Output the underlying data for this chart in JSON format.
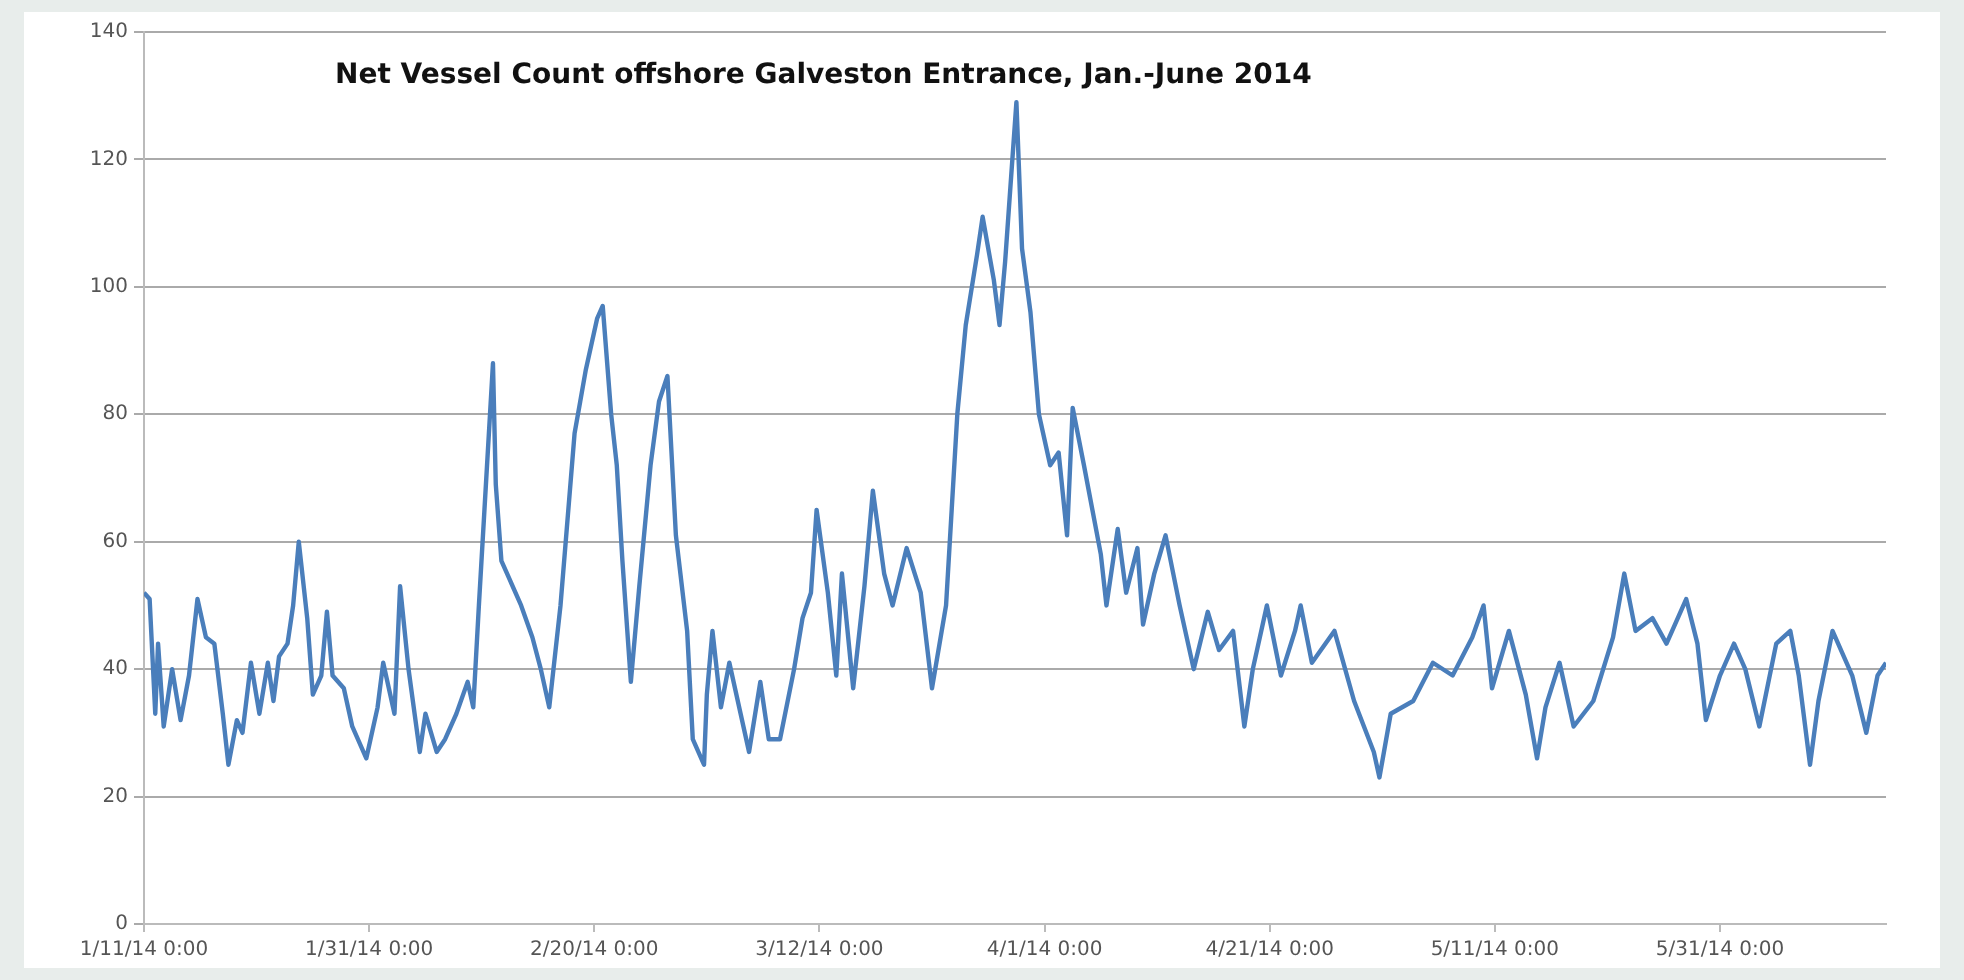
{
  "chart_data": {
    "type": "line",
    "title": "Net Vessel Count offshore Galveston Entrance, Jan.-June 2014",
    "xlim": [
      "2014-01-11T00:00",
      "2014-06-14T18:00"
    ],
    "xticks": [
      {
        "value": "2014-01-11T00:00",
        "label": "1/11/14 0:00"
      },
      {
        "value": "2014-01-31T00:00",
        "label": "1/31/14 0:00"
      },
      {
        "value": "2014-02-20T00:00",
        "label": "2/20/14 0:00"
      },
      {
        "value": "2014-03-12T00:00",
        "label": "3/12/14 0:00"
      },
      {
        "value": "2014-04-01T00:00",
        "label": "4/1/14 0:00"
      },
      {
        "value": "2014-04-21T00:00",
        "label": "4/21/14 0:00"
      },
      {
        "value": "2014-05-11T00:00",
        "label": "5/11/14 0:00"
      },
      {
        "value": "2014-05-31T00:00",
        "label": "5/31/14 0:00"
      }
    ],
    "ylim": [
      0,
      140
    ],
    "yticks": [
      0,
      20,
      40,
      60,
      80,
      100,
      120,
      140
    ],
    "grid": "y",
    "legend": false,
    "marker": "none",
    "line_style": "solid",
    "series": [
      {
        "color": "#4a7ebb",
        "x": [
          "2014-01-11T00:00",
          "2014-01-11T12:00",
          "2014-01-12T00:00",
          "2014-01-12T06:00",
          "2014-01-12T18:00",
          "2014-01-13T12:00",
          "2014-01-14T06:00",
          "2014-01-15T00:00",
          "2014-01-15T18:00",
          "2014-01-16T12:00",
          "2014-01-17T06:00",
          "2014-01-18T00:00",
          "2014-01-18T12:00",
          "2014-01-19T06:00",
          "2014-01-19T18:00",
          "2014-01-20T12:00",
          "2014-01-21T06:00",
          "2014-01-22T00:00",
          "2014-01-22T12:00",
          "2014-01-23T00:00",
          "2014-01-23T18:00",
          "2014-01-24T06:00",
          "2014-01-24T18:00",
          "2014-01-25T12:00",
          "2014-01-26T00:00",
          "2014-01-26T18:00",
          "2014-01-27T06:00",
          "2014-01-27T18:00",
          "2014-01-28T18:00",
          "2014-01-29T12:00",
          "2014-01-30T18:00",
          "2014-01-31T18:00",
          "2014-02-01T06:00",
          "2014-02-02T06:00",
          "2014-02-02T18:00",
          "2014-02-03T12:00",
          "2014-02-04T12:00",
          "2014-02-05T00:00",
          "2014-02-06T00:00",
          "2014-02-06T18:00",
          "2014-02-07T18:00",
          "2014-02-08T18:00",
          "2014-02-09T06:00",
          "2014-02-09T18:00",
          "2014-02-11T00:00",
          "2014-02-11T06:00",
          "2014-02-11T18:00",
          "2014-02-12T12:00",
          "2014-02-13T12:00",
          "2014-02-14T12:00",
          "2014-02-15T06:00",
          "2014-02-16T00:00",
          "2014-02-17T00:00",
          "2014-02-18T06:00",
          "2014-02-18T18:00",
          "2014-02-19T06:00",
          "2014-02-20T06:00",
          "2014-02-20T18:00",
          "2014-02-21T12:00",
          "2014-02-22T00:00",
          "2014-02-22T12:00",
          "2014-02-23T06:00",
          "2014-02-24T00:00",
          "2014-02-25T00:00",
          "2014-02-25T18:00",
          "2014-02-26T12:00",
          "2014-02-27T06:00",
          "2014-02-28T06:00",
          "2014-02-28T18:00",
          "2014-03-01T18:00",
          "2014-03-02T00:00",
          "2014-03-02T12:00",
          "2014-03-03T06:00",
          "2014-03-04T00:00",
          "2014-03-05T00:00",
          "2014-03-05T18:00",
          "2014-03-06T18:00",
          "2014-03-07T12:00",
          "2014-03-08T12:00",
          "2014-03-09T18:00",
          "2014-03-10T12:00",
          "2014-03-11T06:00",
          "2014-03-11T18:00",
          "2014-03-12T18:00",
          "2014-03-13T12:00",
          "2014-03-14T00:00",
          "2014-03-15T00:00",
          "2014-03-16T00:00",
          "2014-03-16T18:00",
          "2014-03-17T18:00",
          "2014-03-18T12:00",
          "2014-03-19T18:00",
          "2014-03-21T00:00",
          "2014-03-22T00:00",
          "2014-03-23T06:00",
          "2014-03-24T06:00",
          "2014-03-25T00:00",
          "2014-03-26T00:00",
          "2014-03-26T12:00",
          "2014-03-27T12:00",
          "2014-03-28T00:00",
          "2014-03-28T12:00",
          "2014-03-29T12:00",
          "2014-03-30T00:00",
          "2014-03-30T18:00",
          "2014-03-31T12:00",
          "2014-04-01T12:00",
          "2014-04-02T06:00",
          "2014-04-03T00:00",
          "2014-04-03T12:00",
          "2014-04-04T12:00",
          "2014-04-06T00:00",
          "2014-04-06T12:00",
          "2014-04-07T12:00",
          "2014-04-08T06:00",
          "2014-04-09T06:00",
          "2014-04-09T18:00",
          "2014-04-10T18:00",
          "2014-04-11T18:00",
          "2014-04-13T00:00",
          "2014-04-14T06:00",
          "2014-04-15T12:00",
          "2014-04-16T12:00",
          "2014-04-17T18:00",
          "2014-04-18T18:00",
          "2014-04-19T12:00",
          "2014-04-20T18:00",
          "2014-04-22T00:00",
          "2014-04-23T06:00",
          "2014-04-23T18:00",
          "2014-04-24T18:00",
          "2014-04-26T18:00",
          "2014-04-28T12:00",
          "2014-04-30T06:00",
          "2014-04-30T18:00",
          "2014-05-01T18:00",
          "2014-05-03T18:00",
          "2014-05-05T12:00",
          "2014-05-07T06:00",
          "2014-05-09T00:00",
          "2014-05-10T00:00",
          "2014-05-10T18:00",
          "2014-05-12T06:00",
          "2014-05-13T18:00",
          "2014-05-14T18:00",
          "2014-05-15T12:00",
          "2014-05-16T18:00",
          "2014-05-18T00:00",
          "2014-05-19T18:00",
          "2014-05-21T12:00",
          "2014-05-22T12:00",
          "2014-05-23T12:00",
          "2014-05-25T00:00",
          "2014-05-26T06:00",
          "2014-05-28T00:00",
          "2014-05-29T00:00",
          "2014-05-29T18:00",
          "2014-05-31T00:00",
          "2014-06-01T06:00",
          "2014-06-02T06:00",
          "2014-06-03T12:00",
          "2014-06-05T00:00",
          "2014-06-06T06:00",
          "2014-06-07T00:00",
          "2014-06-08T00:00",
          "2014-06-08T18:00",
          "2014-06-10T00:00",
          "2014-06-11T18:00",
          "2014-06-13T00:00",
          "2014-06-14T00:00",
          "2014-06-14T18:00"
        ],
        "values": [
          52,
          51,
          33,
          44,
          31,
          40,
          32,
          39,
          51,
          45,
          44,
          33,
          25,
          32,
          30,
          41,
          33,
          41,
          35,
          42,
          44,
          50,
          60,
          48,
          36,
          39,
          49,
          39,
          37,
          31,
          26,
          34,
          41,
          33,
          53,
          40,
          27,
          33,
          27,
          29,
          33,
          38,
          34,
          50,
          88,
          69,
          57,
          54,
          50,
          45,
          40,
          34,
          50,
          77,
          82,
          87,
          95,
          97,
          80,
          72,
          57,
          38,
          53,
          72,
          82,
          86,
          61,
          46,
          29,
          25,
          36,
          46,
          34,
          41,
          33,
          27,
          38,
          29,
          29,
          40,
          48,
          52,
          65,
          52,
          39,
          55,
          37,
          53,
          68,
          55,
          50,
          59,
          52,
          37,
          50,
          80,
          94,
          105,
          111,
          101,
          94,
          104,
          129,
          106,
          96,
          80,
          72,
          74,
          61,
          81,
          72,
          58,
          50,
          62,
          52,
          59,
          47,
          55,
          61,
          50,
          40,
          49,
          43,
          46,
          31,
          40,
          50,
          39,
          46,
          50,
          41,
          46,
          35,
          27,
          23,
          33,
          35,
          41,
          39,
          45,
          50,
          37,
          46,
          36,
          26,
          34,
          41,
          31,
          35,
          45,
          55,
          46,
          48,
          44,
          51,
          44,
          32,
          39,
          44,
          40,
          31,
          44,
          46,
          39,
          25,
          35,
          46,
          39,
          30,
          39,
          41
        ]
      }
    ]
  }
}
